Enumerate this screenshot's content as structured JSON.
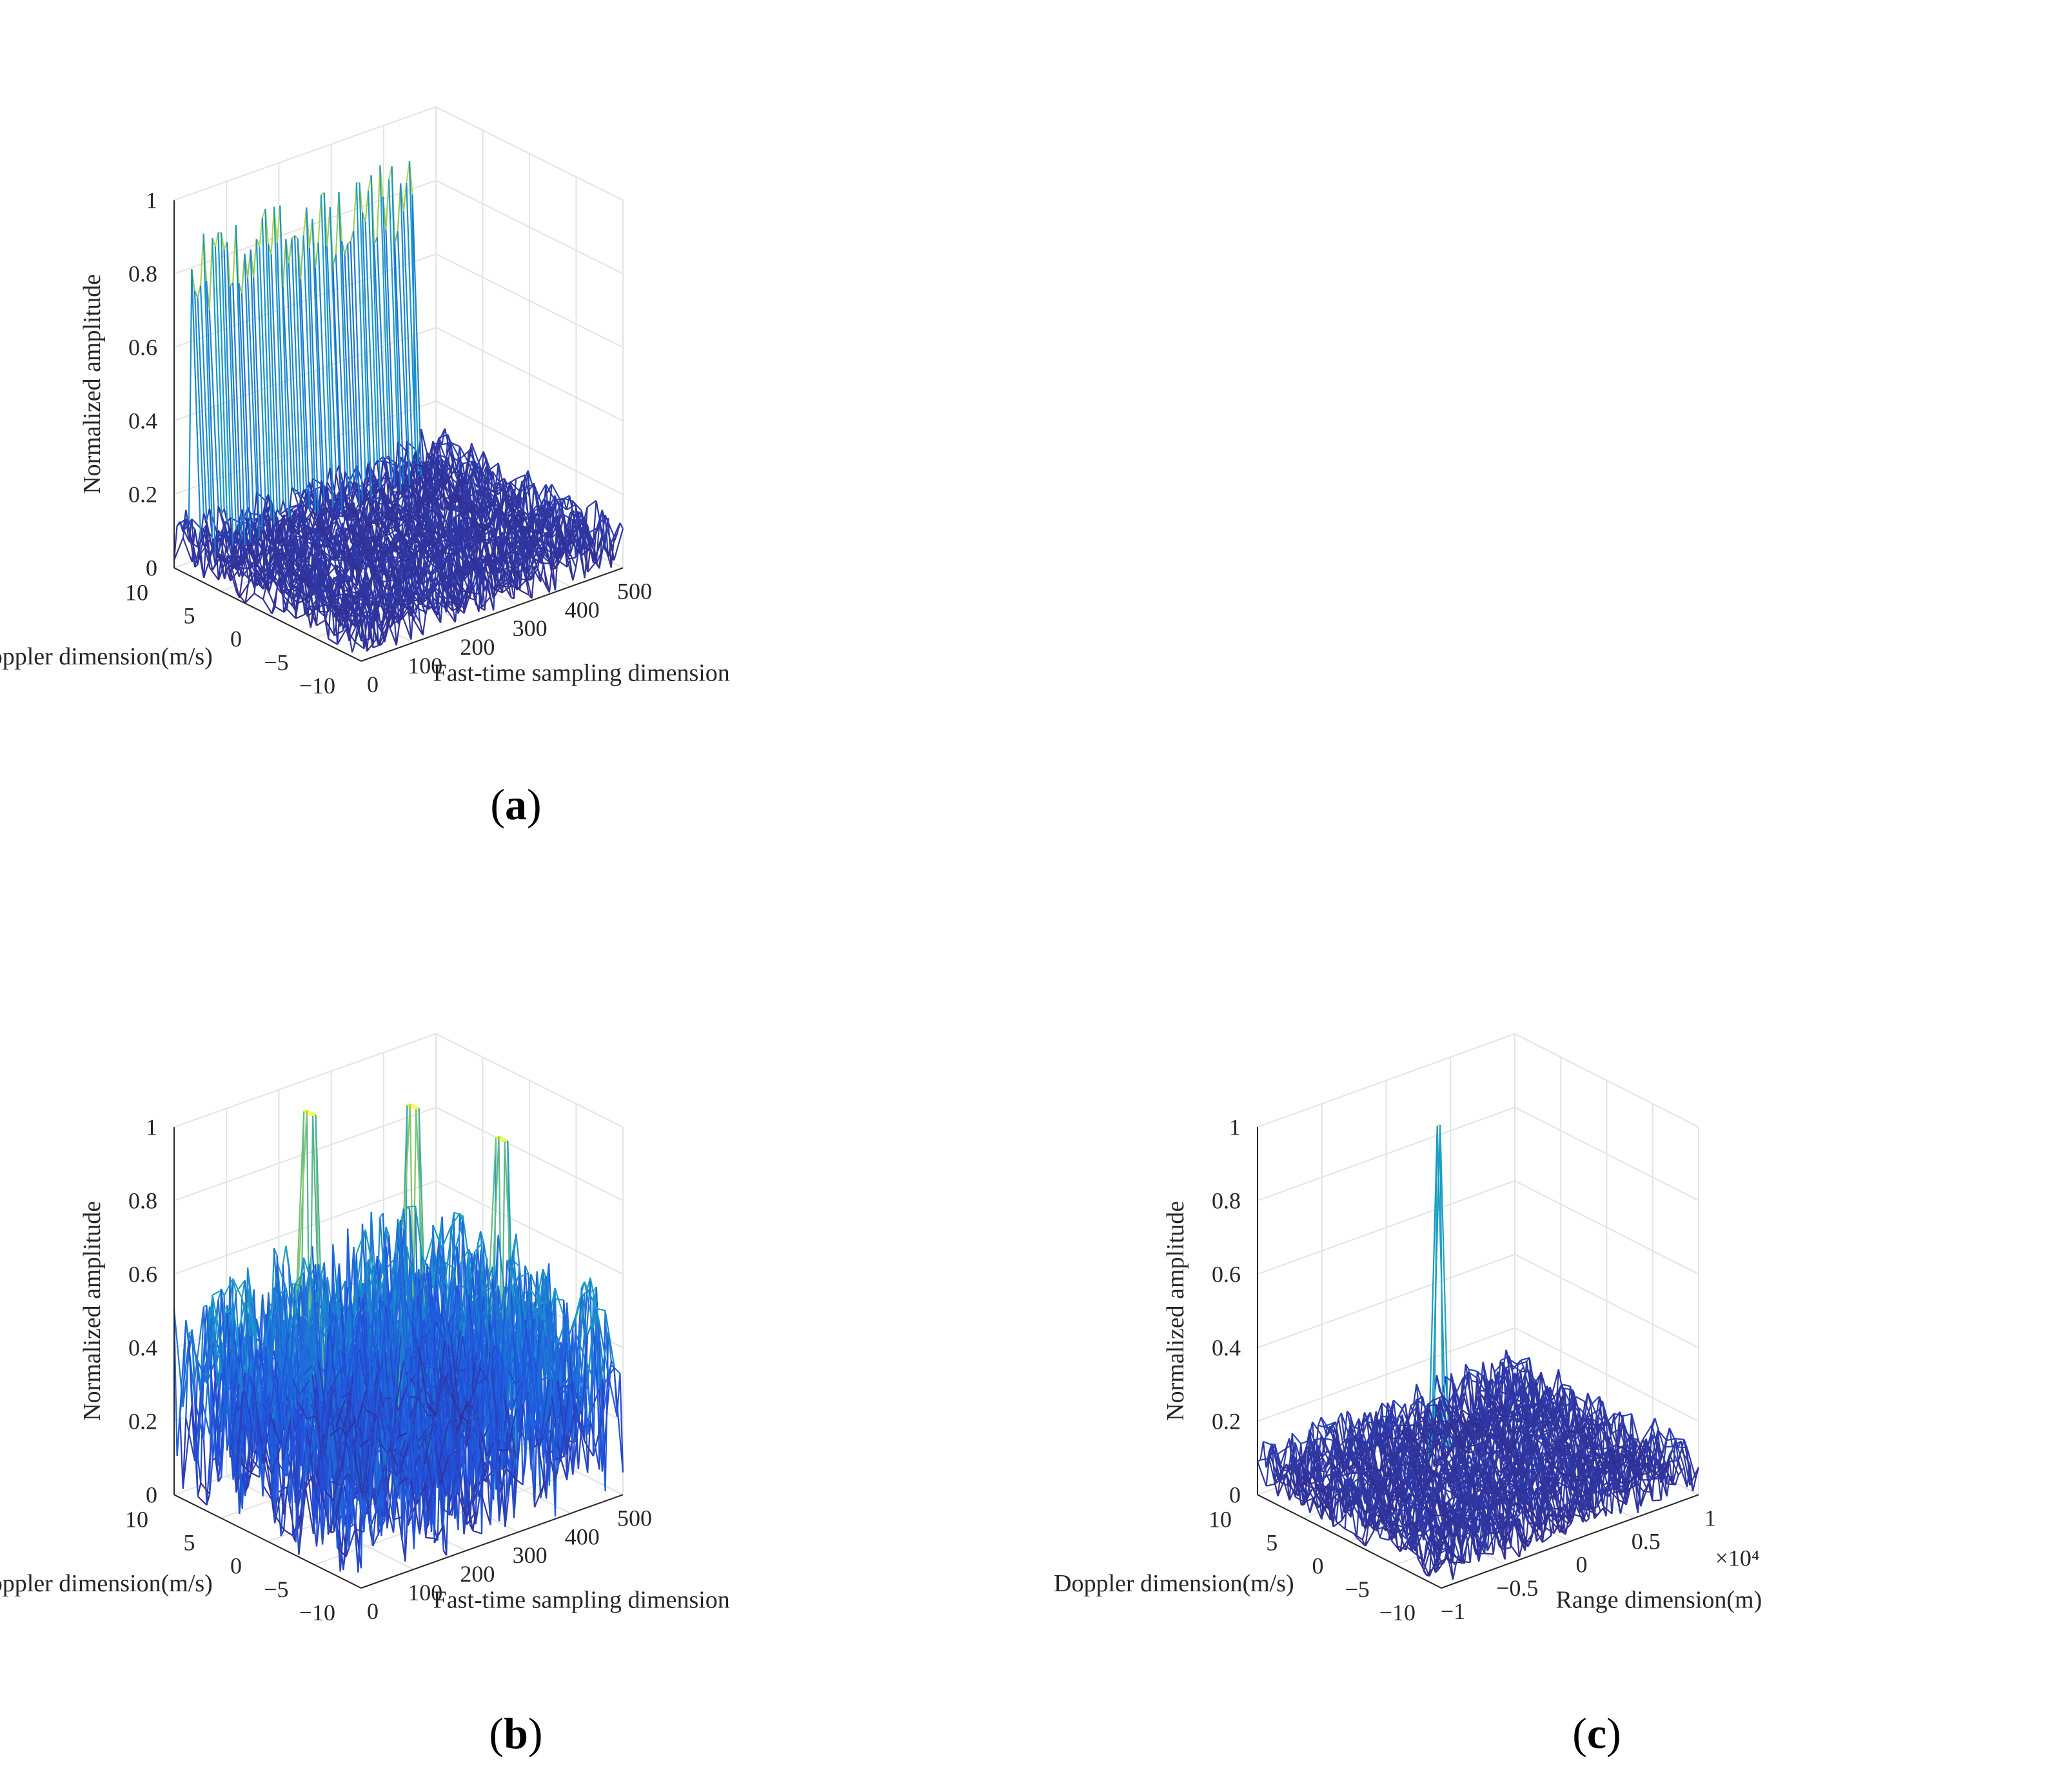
{
  "chart_data": [
    {
      "panel": "(a)",
      "type": "surface3d",
      "zlabel": "Normalized amplitude",
      "xlabel": "Fast-time sampling dimension",
      "ylabel": "Doppler dimension(m/s)",
      "xlim": [
        0,
        500
      ],
      "ylim": [
        -10,
        10
      ],
      "zlim": [
        0,
        1
      ],
      "x_ticks": [
        "0",
        "100",
        "200",
        "300",
        "400",
        "500"
      ],
      "y_ticks": [
        "−10",
        "−5",
        "0",
        "5",
        "10"
      ],
      "z_ticks": [
        "0",
        "0.2",
        "0.4",
        "0.6",
        "0.8",
        "1"
      ],
      "x_exponent": "",
      "surface": {
        "noise_level": 0.15,
        "band": {
          "x_start": 30,
          "x_end": 460,
          "doppler": 10,
          "amplitude": 0.85,
          "jitter": 0.13
        },
        "peaks": [],
        "sharp_peaks": []
      }
    },
    {
      "panel": "(b)",
      "type": "surface3d",
      "zlabel": "Normalized amplitude",
      "xlabel": "Fast-time sampling dimension",
      "ylabel": "Doppler dimension(m/s)",
      "xlim": [
        0,
        500
      ],
      "ylim": [
        -10,
        10
      ],
      "zlim": [
        0,
        1
      ],
      "x_ticks": [
        "0",
        "100",
        "200",
        "300",
        "400",
        "500"
      ],
      "y_ticks": [
        "−10",
        "−5",
        "0",
        "5",
        "10"
      ],
      "z_ticks": [
        "0",
        "0.2",
        "0.4",
        "0.6",
        "0.8",
        "1"
      ],
      "x_exponent": "",
      "surface": {
        "noise_level": 0.58,
        "band": null,
        "peaks": [
          {
            "x": 180,
            "doppler": 6,
            "z": 1.0
          },
          {
            "x": 310,
            "doppler": 2,
            "z": 1.0
          },
          {
            "x": 380,
            "doppler": -4,
            "z": 0.95
          }
        ],
        "sharp_peaks": []
      }
    },
    {
      "panel": "(c)",
      "type": "surface3d",
      "zlabel": "Normalized amplitude",
      "xlabel": "Range dimension(m)",
      "ylabel": "Doppler dimension(m/s)",
      "xlim": [
        -1,
        1
      ],
      "ylim": [
        -10,
        10
      ],
      "zlim": [
        0,
        1
      ],
      "x_ticks": [
        "−1",
        "−0.5",
        "0",
        "0.5",
        "1"
      ],
      "y_ticks": [
        "−10",
        "−5",
        "0",
        "5",
        "10"
      ],
      "z_ticks": [
        "0",
        "0.2",
        "0.4",
        "0.6",
        "0.8",
        "1"
      ],
      "x_exponent": "×10⁴",
      "surface": {
        "noise_level": 0.15,
        "band": null,
        "peaks": [],
        "sharp_peaks": [
          {
            "x": 0,
            "doppler": 4,
            "z": 0.95
          }
        ]
      }
    }
  ],
  "panel_labels": [
    {
      "open": "(",
      "letter": "a",
      "close": ")"
    },
    {
      "open": "(",
      "letter": "b",
      "close": ")"
    },
    {
      "open": "(",
      "letter": "c",
      "close": ")"
    }
  ]
}
